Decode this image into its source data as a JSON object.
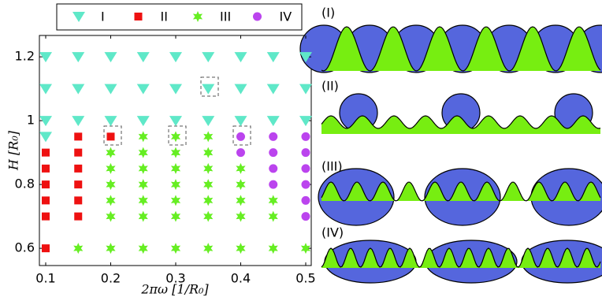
{
  "chart_data": {
    "type": "scatter",
    "xlabel": "2πω   [1/R₀]",
    "ylabel": "H   [R₀]",
    "xlim": [
      0.0903,
      0.5085
    ],
    "ylim": [
      0.546,
      1.267
    ],
    "xticks": [
      0.1,
      0.2,
      0.3,
      0.4,
      0.5
    ],
    "yticks": [
      0.6,
      0.8,
      1,
      1.2
    ],
    "series": [
      {
        "name": "I",
        "marker": "triangle",
        "color": "#5fe8c8",
        "x": [
          0.1,
          0.1,
          0.1,
          0.1,
          0.15,
          0.15,
          0.15,
          0.2,
          0.2,
          0.2,
          0.25,
          0.25,
          0.25,
          0.3,
          0.3,
          0.3,
          0.35,
          0.35,
          0.35,
          0.4,
          0.4,
          0.4,
          0.45,
          0.45,
          0.45,
          0.5,
          0.5,
          0.5
        ],
        "y": [
          1.2,
          1.1,
          1.0,
          0.95,
          1.2,
          1.1,
          1.0,
          1.2,
          1.1,
          1.0,
          1.2,
          1.1,
          1.0,
          1.2,
          1.1,
          1.0,
          1.2,
          1.1,
          1.0,
          1.2,
          1.1,
          1.0,
          1.2,
          1.1,
          1.0,
          1.2,
          1.1,
          1.0
        ]
      },
      {
        "name": "II",
        "marker": "square",
        "color": "#ee1111",
        "x": [
          0.1,
          0.1,
          0.1,
          0.1,
          0.1,
          0.1,
          0.15,
          0.15,
          0.15,
          0.15,
          0.15,
          0.15,
          0.2
        ],
        "y": [
          0.9,
          0.85,
          0.8,
          0.75,
          0.7,
          0.6,
          0.95,
          0.9,
          0.85,
          0.8,
          0.75,
          0.7,
          0.95
        ]
      },
      {
        "name": "III",
        "marker": "star",
        "color": "#66ee22",
        "x": [
          0.15,
          0.2,
          0.2,
          0.2,
          0.2,
          0.2,
          0.2,
          0.25,
          0.25,
          0.25,
          0.25,
          0.25,
          0.25,
          0.25,
          0.3,
          0.3,
          0.3,
          0.3,
          0.3,
          0.3,
          0.3,
          0.35,
          0.35,
          0.35,
          0.35,
          0.35,
          0.35,
          0.35,
          0.4,
          0.4,
          0.4,
          0.4,
          0.4,
          0.45,
          0.45,
          0.45,
          0.5
        ],
        "y": [
          0.6,
          0.9,
          0.85,
          0.8,
          0.75,
          0.7,
          0.6,
          0.95,
          0.9,
          0.85,
          0.8,
          0.75,
          0.7,
          0.6,
          0.95,
          0.9,
          0.85,
          0.8,
          0.75,
          0.7,
          0.6,
          0.95,
          0.9,
          0.85,
          0.8,
          0.75,
          0.7,
          0.6,
          0.85,
          0.8,
          0.75,
          0.7,
          0.6,
          0.75,
          0.7,
          0.6,
          0.6
        ]
      },
      {
        "name": "IV",
        "marker": "circle",
        "color": "#bb44ee",
        "x": [
          0.4,
          0.4,
          0.45,
          0.45,
          0.45,
          0.45,
          0.5,
          0.5,
          0.5,
          0.5,
          0.5,
          0.5
        ],
        "y": [
          0.95,
          0.9,
          0.95,
          0.9,
          0.85,
          0.8,
          0.95,
          0.9,
          0.85,
          0.8,
          0.75,
          0.7
        ]
      }
    ]
  },
  "panels": [
    "(I)",
    "(II)",
    "(III)",
    "(IV)"
  ]
}
